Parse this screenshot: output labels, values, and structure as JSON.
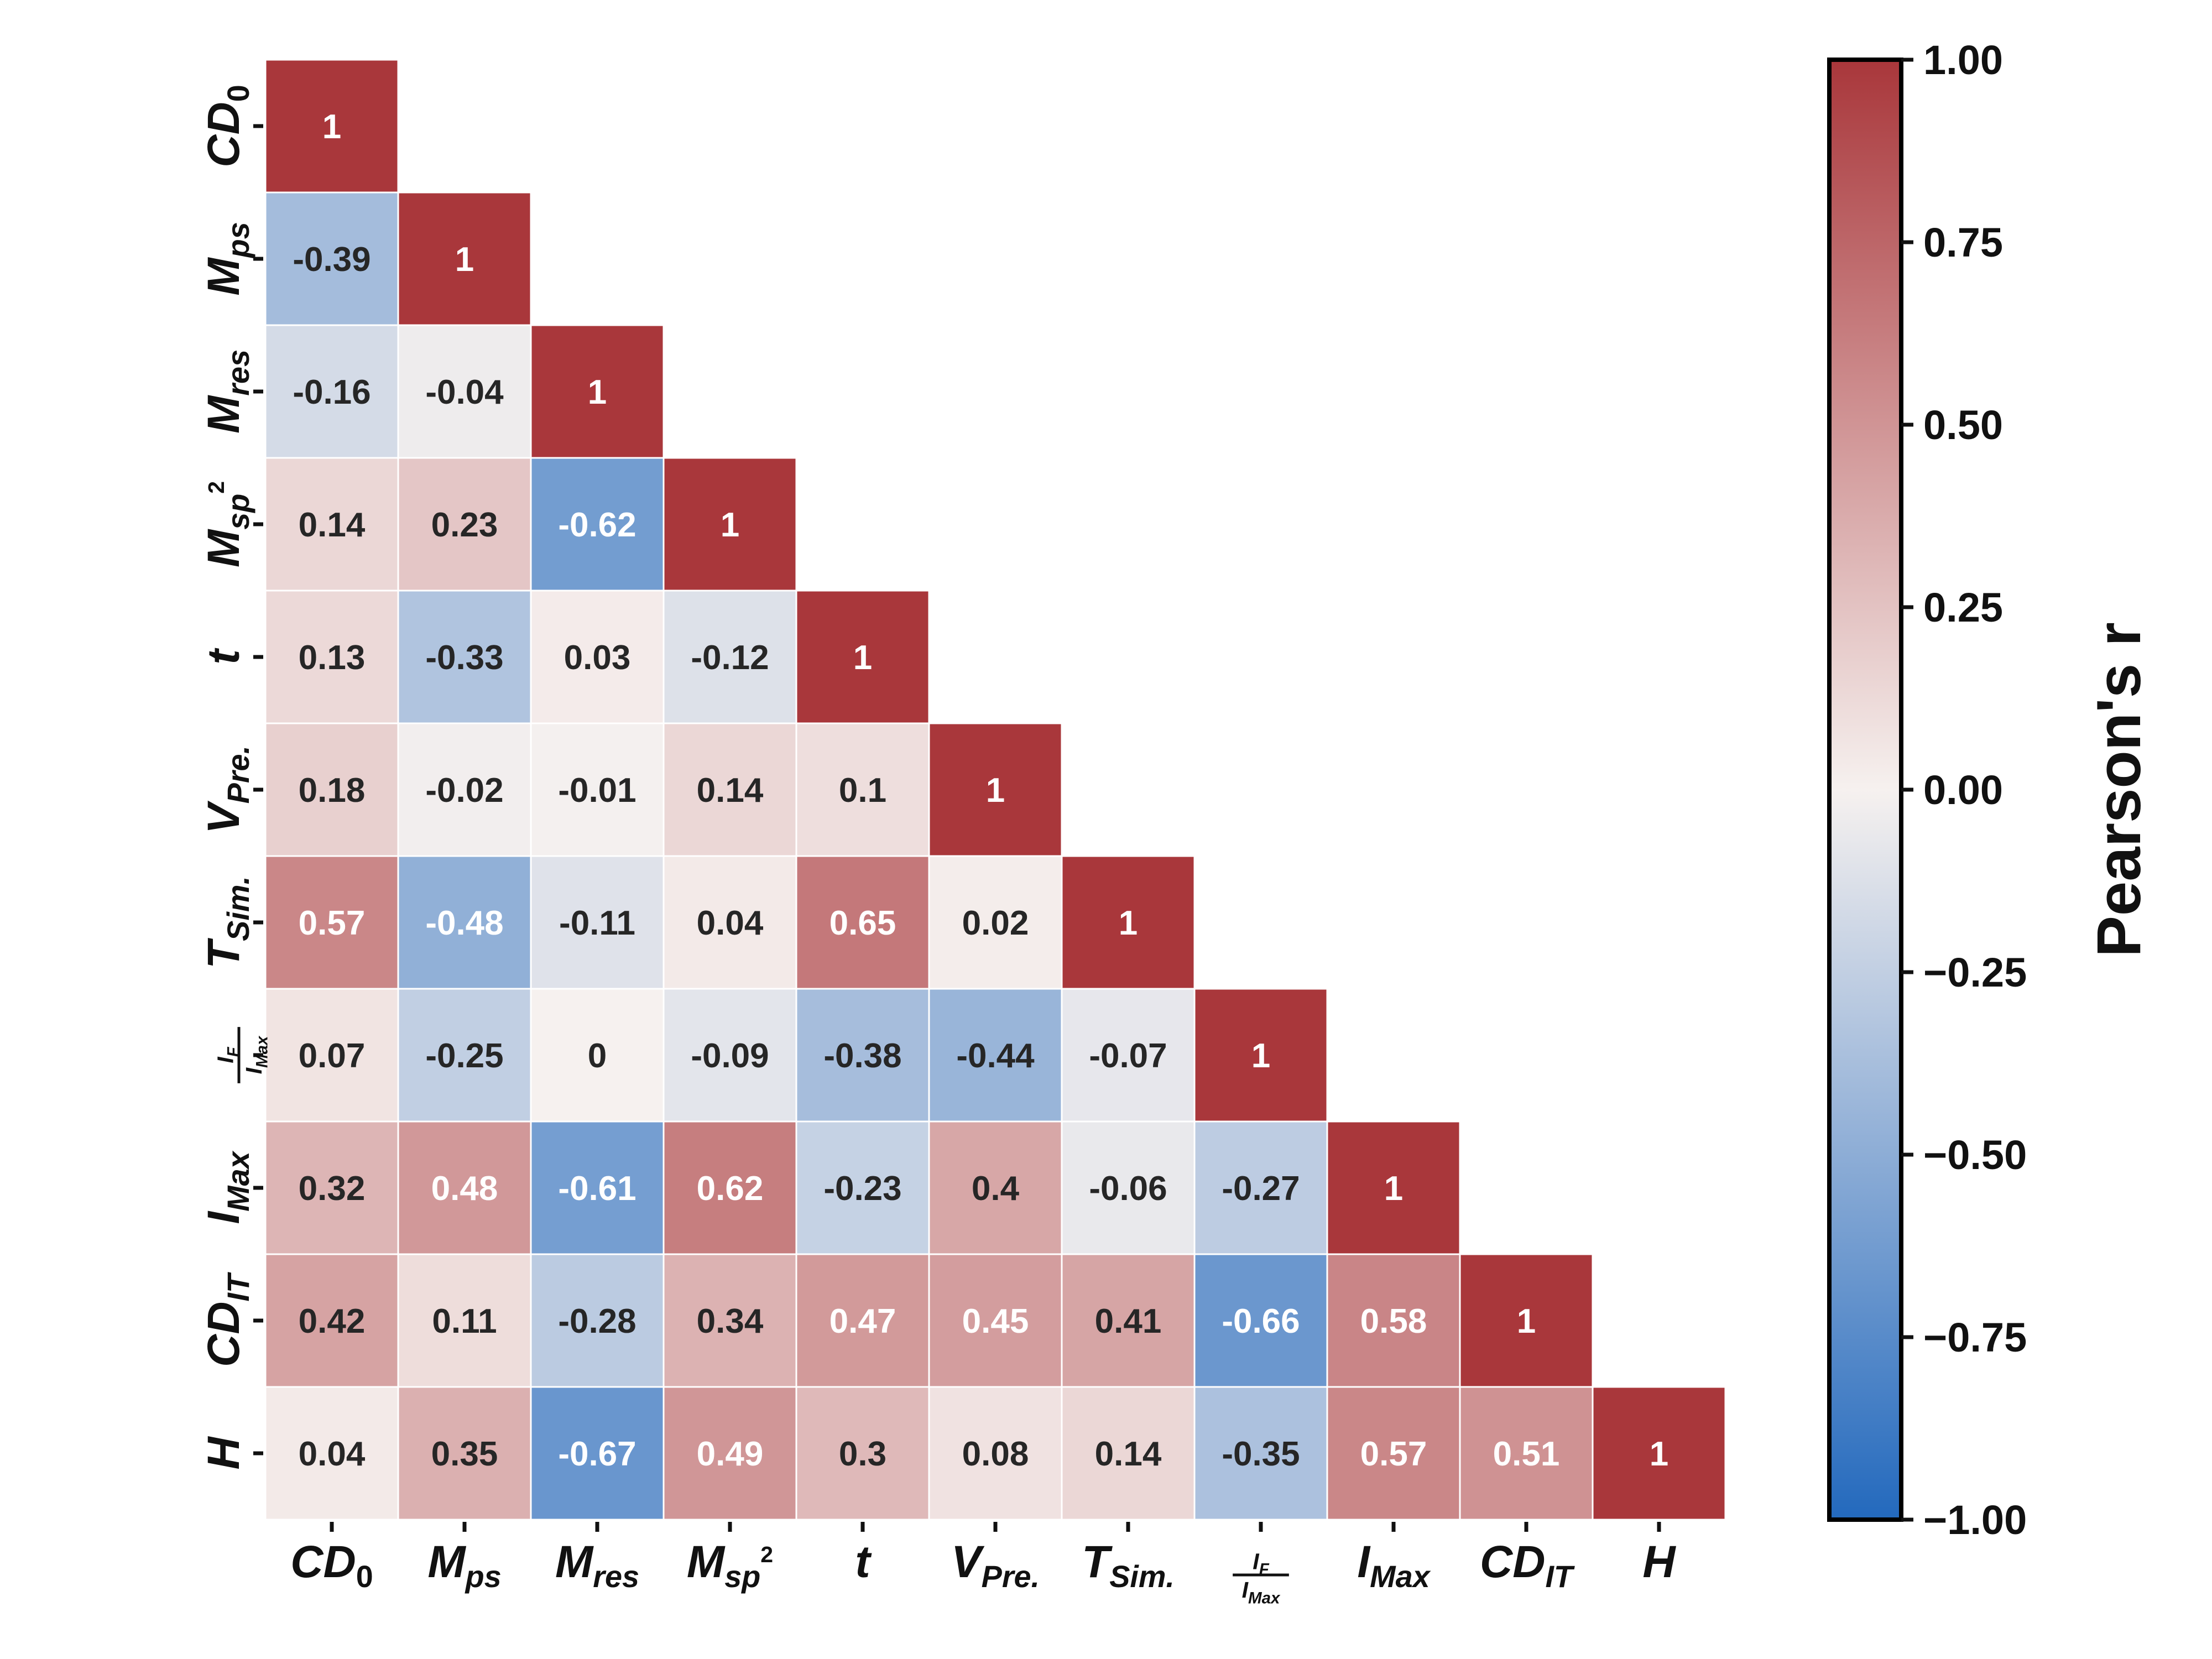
{
  "chart_data": {
    "type": "heatmap",
    "variables": [
      {
        "base": "CD",
        "sub": "0",
        "sub_italic": false,
        "sup": ""
      },
      {
        "base": "M",
        "sub": "ps",
        "sub_italic": true,
        "sup": ""
      },
      {
        "base": "M",
        "sub": "res",
        "sub_italic": true,
        "sup": ""
      },
      {
        "base": "M",
        "sub": "sp",
        "sub_italic": true,
        "sup": "2"
      },
      {
        "base": "t",
        "sub": "",
        "sub_italic": true,
        "sup": ""
      },
      {
        "base": "V",
        "sub": "Pre.",
        "sub_italic": true,
        "sup": ""
      },
      {
        "base": "T",
        "sub": "Sim.",
        "sub_italic": true,
        "sup": ""
      },
      {
        "fraction": true,
        "num_base": "I",
        "num_sub": "F",
        "den_base": "I",
        "den_sub": "Max"
      },
      {
        "base": "I",
        "sub": "Max",
        "sub_italic": true,
        "sup": ""
      },
      {
        "base": "CD",
        "sub": "IT",
        "sub_italic": true,
        "sup": ""
      },
      {
        "base": "H",
        "sub": "",
        "sub_italic": true,
        "sup": ""
      }
    ],
    "matrix": [
      [
        "1"
      ],
      [
        "-0.39",
        "1"
      ],
      [
        "-0.16",
        "-0.04",
        "1"
      ],
      [
        "0.14",
        "0.23",
        "-0.62",
        "1"
      ],
      [
        "0.13",
        "-0.33",
        "0.03",
        "-0.12",
        "1"
      ],
      [
        "0.18",
        "-0.02",
        "-0.01",
        "0.14",
        "0.1",
        "1"
      ],
      [
        "0.57",
        "-0.48",
        "-0.11",
        "0.04",
        "0.65",
        "0.02",
        "1"
      ],
      [
        "0.07",
        "-0.25",
        "0",
        "-0.09",
        "-0.38",
        "-0.44",
        "-0.07",
        "1"
      ],
      [
        "0.32",
        "0.48",
        "-0.61",
        "0.62",
        "-0.23",
        "0.4",
        "-0.06",
        "-0.27",
        "1"
      ],
      [
        "0.42",
        "0.11",
        "-0.28",
        "0.34",
        "0.47",
        "0.45",
        "0.41",
        "-0.66",
        "0.58",
        "1"
      ],
      [
        "0.04",
        "0.35",
        "-0.67",
        "0.49",
        "0.3",
        "0.08",
        "0.14",
        "-0.35",
        "0.57",
        "0.51",
        "1"
      ]
    ],
    "colormap": "vlag",
    "vmin": -1,
    "vmax": 1,
    "colorbar": {
      "label": "Pearson's r",
      "ticks": [
        1.0,
        0.75,
        0.5,
        0.25,
        0.0,
        -0.25,
        -0.5,
        -0.75,
        -1.0
      ],
      "tick_labels": [
        "1.00",
        "0.75",
        "0.50",
        "0.25",
        "0.00",
        "−0.25",
        "−0.50",
        "−0.75",
        "−1.00"
      ]
    },
    "colors": {
      "max": "#a9373b",
      "mid": "#f6f1ef",
      "min": "#2369bd",
      "text_dark": "#262626",
      "text_light": "#ffffff"
    }
  }
}
